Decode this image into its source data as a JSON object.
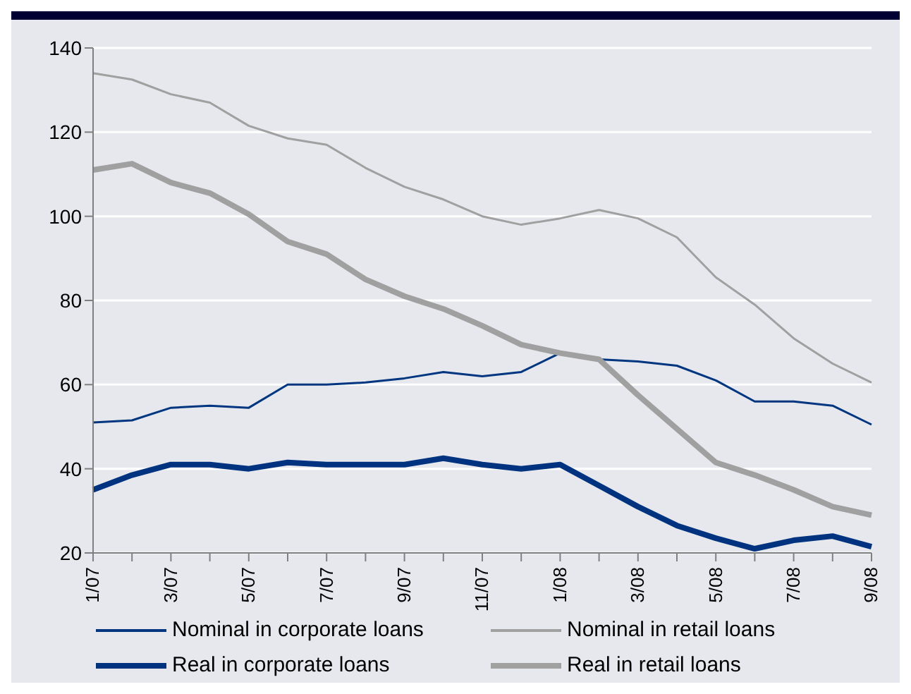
{
  "chart_data": {
    "type": "line",
    "categories": [
      "1/07",
      null,
      "3/07",
      null,
      "5/07",
      null,
      "7/07",
      null,
      "9/07",
      null,
      "11/07",
      null,
      "1/08",
      null,
      "3/08",
      null,
      "5/08",
      null,
      "7/08",
      null,
      "9/08"
    ],
    "series": [
      {
        "name": "Nominal in corporate loans",
        "color": "#003580",
        "values": [
          51,
          51.5,
          54.5,
          55,
          54.5,
          60,
          60,
          60.5,
          61.5,
          63,
          62,
          63,
          67.5,
          66,
          65.5,
          64.5,
          61,
          56,
          56,
          55,
          50.5
        ]
      },
      {
        "name": "Nominal in retail loans",
        "color": "#a0a0a0",
        "values": [
          134,
          132.5,
          129,
          127,
          121.5,
          118.5,
          117,
          111.5,
          107,
          104,
          100,
          98,
          99.5,
          101.5,
          99.5,
          95,
          85.5,
          79,
          71,
          65,
          60.5
        ]
      },
      {
        "name": "Real in corporate loans",
        "color": "#00337f",
        "values": [
          35,
          38.5,
          41,
          41,
          40,
          41.5,
          41,
          41,
          41,
          42.5,
          41,
          40,
          41,
          36,
          31,
          26.5,
          23.5,
          21,
          23,
          24,
          21.5
        ]
      },
      {
        "name": "Real in retail loans",
        "color": "#a0a0a0",
        "values": [
          111,
          112.5,
          108,
          105.5,
          100.5,
          94,
          91,
          85,
          81,
          78,
          74,
          69.5,
          67.5,
          66,
          57.5,
          49.5,
          41.5,
          38.5,
          35,
          31,
          29
        ]
      }
    ],
    "ylim": [
      20,
      140
    ],
    "yticks": [
      20,
      40,
      60,
      80,
      100,
      120,
      140
    ],
    "grid": "y",
    "legend": "bottom",
    "marker": "none",
    "line_style": "solid"
  }
}
